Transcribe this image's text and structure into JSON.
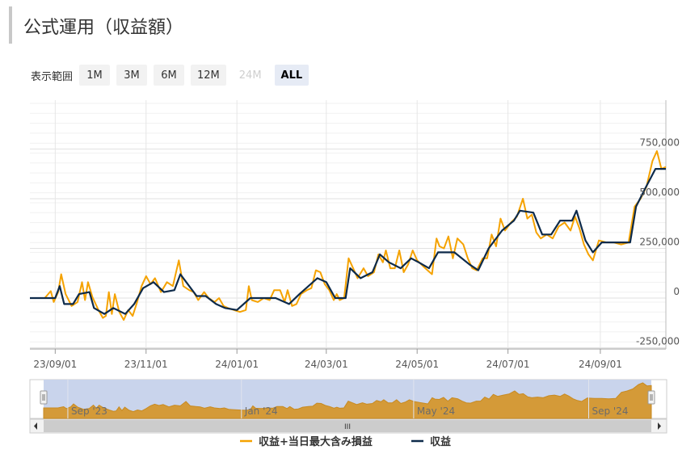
{
  "page": {
    "title": "公式運用（収益額）"
  },
  "range_selector": {
    "label": "表示範囲",
    "buttons": [
      {
        "label": "1M",
        "state": "normal"
      },
      {
        "label": "3M",
        "state": "normal"
      },
      {
        "label": "6M",
        "state": "normal"
      },
      {
        "label": "12M",
        "state": "normal"
      },
      {
        "label": "24M",
        "state": "disabled"
      },
      {
        "label": "ALL",
        "state": "active"
      }
    ]
  },
  "navigator": {
    "labels": [
      "Sep '23",
      "Jan '24",
      "May '24",
      "Sep '24"
    ],
    "scrollbar_grip": "III",
    "fill_color": "#d49a38",
    "mask_color": "#c9d4ec"
  },
  "colors": {
    "line_total": "#f5a200",
    "line_profit": "#0d2a4a",
    "grid": "#e6e6e6",
    "axis_text": "#555555"
  },
  "chart_data": {
    "type": "line",
    "title": "",
    "x_tick_labels": [
      "23/09/01",
      "23/11/01",
      "24/01/01",
      "24/03/01",
      "24/05/01",
      "24/07/01",
      "24/09/01"
    ],
    "x_ticks": [
      "2023-09-01",
      "2023-11-01",
      "2024-01-01",
      "2024-03-01",
      "2024-05-01",
      "2024-07-01",
      "2024-09-01"
    ],
    "y_tick_labels": [
      "-250,000",
      "0",
      "250,000",
      "500,000",
      "750,000"
    ],
    "y_ticks": [
      -250000,
      0,
      250000,
      500000,
      750000
    ],
    "ylim": [
      -250000,
      1000000
    ],
    "xlim": [
      "2023-08-15",
      "2024-10-15"
    ],
    "grid": true,
    "legend_position": "bottom",
    "series": [
      {
        "name": "収益+当日最大含み損益",
        "color": "#f5a200",
        "points": [
          [
            "2023-08-15",
            0
          ],
          [
            "2023-08-25",
            0
          ],
          [
            "2023-08-29",
            35000
          ],
          [
            "2023-08-31",
            -20000
          ],
          [
            "2023-09-03",
            30000
          ],
          [
            "2023-09-05",
            120000
          ],
          [
            "2023-09-08",
            20000
          ],
          [
            "2023-09-12",
            -40000
          ],
          [
            "2023-09-16",
            -20000
          ],
          [
            "2023-09-19",
            80000
          ],
          [
            "2023-09-21",
            -10000
          ],
          [
            "2023-09-23",
            80000
          ],
          [
            "2023-09-26",
            5000
          ],
          [
            "2023-09-30",
            -60000
          ],
          [
            "2023-10-03",
            -100000
          ],
          [
            "2023-10-05",
            -90000
          ],
          [
            "2023-10-07",
            30000
          ],
          [
            "2023-10-09",
            -80000
          ],
          [
            "2023-10-11",
            20000
          ],
          [
            "2023-10-14",
            -70000
          ],
          [
            "2023-10-17",
            -110000
          ],
          [
            "2023-10-20",
            -60000
          ],
          [
            "2023-10-23",
            -90000
          ],
          [
            "2023-10-26",
            -20000
          ],
          [
            "2023-10-29",
            60000
          ],
          [
            "2023-11-01",
            110000
          ],
          [
            "2023-11-04",
            70000
          ],
          [
            "2023-11-07",
            100000
          ],
          [
            "2023-11-11",
            30000
          ],
          [
            "2023-11-15",
            80000
          ],
          [
            "2023-11-19",
            60000
          ],
          [
            "2023-11-23",
            190000
          ],
          [
            "2023-11-26",
            60000
          ],
          [
            "2023-11-30",
            40000
          ],
          [
            "2023-12-03",
            30000
          ],
          [
            "2023-12-06",
            -10000
          ],
          [
            "2023-12-10",
            30000
          ],
          [
            "2023-12-13",
            0
          ],
          [
            "2023-12-17",
            -20000
          ],
          [
            "2023-12-20",
            0
          ],
          [
            "2023-12-23",
            -40000
          ],
          [
            "2023-12-26",
            -50000
          ],
          [
            "2023-12-30",
            -60000
          ],
          [
            "2024-01-03",
            -70000
          ],
          [
            "2024-01-07",
            -60000
          ],
          [
            "2024-01-09",
            60000
          ],
          [
            "2024-01-11",
            -10000
          ],
          [
            "2024-01-15",
            -20000
          ],
          [
            "2024-01-19",
            0
          ],
          [
            "2024-01-23",
            -10000
          ],
          [
            "2024-01-26",
            40000
          ],
          [
            "2024-01-30",
            40000
          ],
          [
            "2024-02-02",
            -20000
          ],
          [
            "2024-02-04",
            40000
          ],
          [
            "2024-02-07",
            -40000
          ],
          [
            "2024-02-10",
            -30000
          ],
          [
            "2024-02-13",
            20000
          ],
          [
            "2024-02-17",
            40000
          ],
          [
            "2024-02-20",
            50000
          ],
          [
            "2024-02-23",
            140000
          ],
          [
            "2024-02-26",
            130000
          ],
          [
            "2024-02-29",
            70000
          ],
          [
            "2024-03-03",
            40000
          ],
          [
            "2024-03-06",
            -10000
          ],
          [
            "2024-03-08",
            20000
          ],
          [
            "2024-03-10",
            -10000
          ],
          [
            "2024-03-13",
            0
          ],
          [
            "2024-03-16",
            200000
          ],
          [
            "2024-03-19",
            150000
          ],
          [
            "2024-03-22",
            100000
          ],
          [
            "2024-03-26",
            150000
          ],
          [
            "2024-03-29",
            110000
          ],
          [
            "2024-04-02",
            130000
          ],
          [
            "2024-04-05",
            220000
          ],
          [
            "2024-04-08",
            180000
          ],
          [
            "2024-04-10",
            240000
          ],
          [
            "2024-04-13",
            150000
          ],
          [
            "2024-04-16",
            150000
          ],
          [
            "2024-04-19",
            240000
          ],
          [
            "2024-04-22",
            130000
          ],
          [
            "2024-04-25",
            170000
          ],
          [
            "2024-04-28",
            240000
          ],
          [
            "2024-05-01",
            190000
          ],
          [
            "2024-05-05",
            160000
          ],
          [
            "2024-05-08",
            140000
          ],
          [
            "2024-05-11",
            120000
          ],
          [
            "2024-05-14",
            300000
          ],
          [
            "2024-05-16",
            260000
          ],
          [
            "2024-05-19",
            250000
          ],
          [
            "2024-05-22",
            310000
          ],
          [
            "2024-05-25",
            200000
          ],
          [
            "2024-05-28",
            300000
          ],
          [
            "2024-06-01",
            270000
          ],
          [
            "2024-06-04",
            200000
          ],
          [
            "2024-06-07",
            150000
          ],
          [
            "2024-06-10",
            140000
          ],
          [
            "2024-06-14",
            200000
          ],
          [
            "2024-06-17",
            200000
          ],
          [
            "2024-06-20",
            320000
          ],
          [
            "2024-06-23",
            260000
          ],
          [
            "2024-06-26",
            400000
          ],
          [
            "2024-06-29",
            340000
          ],
          [
            "2024-07-03",
            380000
          ],
          [
            "2024-07-07",
            410000
          ],
          [
            "2024-07-11",
            500000
          ],
          [
            "2024-07-14",
            400000
          ],
          [
            "2024-07-17",
            420000
          ],
          [
            "2024-07-20",
            330000
          ],
          [
            "2024-07-23",
            300000
          ],
          [
            "2024-07-27",
            320000
          ],
          [
            "2024-07-31",
            300000
          ],
          [
            "2024-08-04",
            360000
          ],
          [
            "2024-08-08",
            380000
          ],
          [
            "2024-08-12",
            340000
          ],
          [
            "2024-08-15",
            410000
          ],
          [
            "2024-08-18",
            350000
          ],
          [
            "2024-08-21",
            270000
          ],
          [
            "2024-08-24",
            220000
          ],
          [
            "2024-08-27",
            190000
          ],
          [
            "2024-08-31",
            290000
          ],
          [
            "2024-09-05",
            280000
          ],
          [
            "2024-09-10",
            280000
          ],
          [
            "2024-09-15",
            270000
          ],
          [
            "2024-09-20",
            280000
          ],
          [
            "2024-09-24",
            460000
          ],
          [
            "2024-09-28",
            500000
          ],
          [
            "2024-10-02",
            560000
          ],
          [
            "2024-10-06",
            690000
          ],
          [
            "2024-10-09",
            740000
          ],
          [
            "2024-10-12",
            650000
          ],
          [
            "2024-10-15",
            660000
          ]
        ]
      },
      {
        "name": "収益",
        "color": "#0d2a4a",
        "points": [
          [
            "2023-08-15",
            0
          ],
          [
            "2023-08-29",
            0
          ],
          [
            "2023-09-01",
            0
          ],
          [
            "2023-09-01",
            0
          ],
          [
            "2023-09-04",
            60000
          ],
          [
            "2023-09-07",
            -30000
          ],
          [
            "2023-09-13",
            -30000
          ],
          [
            "2023-09-17",
            20000
          ],
          [
            "2023-09-24",
            30000
          ],
          [
            "2023-09-27",
            -50000
          ],
          [
            "2023-10-04",
            -80000
          ],
          [
            "2023-10-10",
            -50000
          ],
          [
            "2023-10-18",
            -80000
          ],
          [
            "2023-10-24",
            -30000
          ],
          [
            "2023-10-30",
            50000
          ],
          [
            "2023-11-06",
            80000
          ],
          [
            "2023-11-13",
            30000
          ],
          [
            "2023-11-20",
            40000
          ],
          [
            "2023-11-24",
            120000
          ],
          [
            "2023-11-28",
            80000
          ],
          [
            "2023-12-05",
            10000
          ],
          [
            "2023-12-11",
            10000
          ],
          [
            "2023-12-18",
            -30000
          ],
          [
            "2023-12-24",
            -50000
          ],
          [
            "2024-01-01",
            -60000
          ],
          [
            "2024-01-10",
            0
          ],
          [
            "2024-01-18",
            0
          ],
          [
            "2024-01-27",
            0
          ],
          [
            "2024-02-05",
            -30000
          ],
          [
            "2024-02-12",
            20000
          ],
          [
            "2024-02-24",
            100000
          ],
          [
            "2024-03-01",
            80000
          ],
          [
            "2024-03-07",
            0
          ],
          [
            "2024-03-14",
            0
          ],
          [
            "2024-03-17",
            150000
          ],
          [
            "2024-03-24",
            100000
          ],
          [
            "2024-04-01",
            130000
          ],
          [
            "2024-04-06",
            220000
          ],
          [
            "2024-04-12",
            180000
          ],
          [
            "2024-04-20",
            150000
          ],
          [
            "2024-04-27",
            200000
          ],
          [
            "2024-05-02",
            180000
          ],
          [
            "2024-05-09",
            150000
          ],
          [
            "2024-05-15",
            230000
          ],
          [
            "2024-05-26",
            230000
          ],
          [
            "2024-06-05",
            170000
          ],
          [
            "2024-06-11",
            140000
          ],
          [
            "2024-06-18",
            250000
          ],
          [
            "2024-06-27",
            340000
          ],
          [
            "2024-07-05",
            390000
          ],
          [
            "2024-07-09",
            440000
          ],
          [
            "2024-07-18",
            430000
          ],
          [
            "2024-07-24",
            320000
          ],
          [
            "2024-07-30",
            320000
          ],
          [
            "2024-08-05",
            390000
          ],
          [
            "2024-08-13",
            390000
          ],
          [
            "2024-08-16",
            440000
          ],
          [
            "2024-08-22",
            290000
          ],
          [
            "2024-08-27",
            230000
          ],
          [
            "2024-09-02",
            280000
          ],
          [
            "2024-09-12",
            280000
          ],
          [
            "2024-09-21",
            280000
          ],
          [
            "2024-09-25",
            460000
          ],
          [
            "2024-10-01",
            550000
          ],
          [
            "2024-10-08",
            650000
          ],
          [
            "2024-10-12",
            650000
          ],
          [
            "2024-10-15",
            650000
          ]
        ]
      }
    ]
  }
}
